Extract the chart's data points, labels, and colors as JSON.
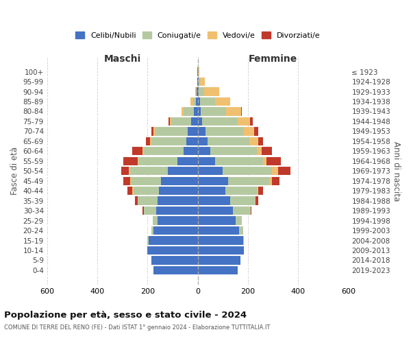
{
  "age_groups": [
    "0-4",
    "5-9",
    "10-14",
    "15-19",
    "20-24",
    "25-29",
    "30-34",
    "35-39",
    "40-44",
    "45-49",
    "50-54",
    "55-59",
    "60-64",
    "65-69",
    "70-74",
    "75-79",
    "80-84",
    "85-89",
    "90-94",
    "95-99",
    "100+"
  ],
  "birth_years": [
    "2019-2023",
    "2014-2018",
    "2009-2013",
    "2004-2008",
    "1999-2003",
    "1994-1998",
    "1989-1993",
    "1984-1988",
    "1979-1983",
    "1974-1978",
    "1969-1973",
    "1964-1968",
    "1959-1963",
    "1954-1958",
    "1949-1953",
    "1944-1948",
    "1939-1943",
    "1934-1938",
    "1929-1933",
    "1924-1928",
    "≤ 1923"
  ],
  "colors": {
    "celibi": "#4472c4",
    "coniugati": "#b5c9a1",
    "vedovi": "#f0c070",
    "divorziati": "#c0392b"
  },
  "maschi": {
    "celibi": [
      175,
      185,
      200,
      195,
      175,
      160,
      165,
      160,
      155,
      145,
      120,
      80,
      55,
      45,
      40,
      25,
      15,
      8,
      5,
      3,
      2
    ],
    "coniugati": [
      0,
      0,
      0,
      5,
      10,
      20,
      50,
      80,
      100,
      120,
      150,
      155,
      160,
      140,
      130,
      80,
      40,
      10,
      0,
      0,
      0
    ],
    "vedovi": [
      0,
      0,
      0,
      0,
      0,
      0,
      0,
      0,
      5,
      5,
      5,
      5,
      5,
      5,
      5,
      5,
      10,
      10,
      5,
      0,
      0
    ],
    "divorziati": [
      0,
      0,
      0,
      0,
      0,
      0,
      5,
      10,
      20,
      25,
      30,
      55,
      40,
      15,
      10,
      5,
      0,
      0,
      0,
      0,
      0
    ]
  },
  "femmine": {
    "celibi": [
      160,
      170,
      185,
      180,
      165,
      150,
      140,
      130,
      110,
      120,
      100,
      70,
      50,
      40,
      30,
      18,
      12,
      8,
      5,
      3,
      2
    ],
    "coniugati": [
      0,
      0,
      0,
      5,
      15,
      25,
      70,
      100,
      125,
      165,
      195,
      190,
      185,
      165,
      155,
      140,
      100,
      60,
      20,
      5,
      0
    ],
    "vedovi": [
      0,
      0,
      0,
      0,
      0,
      0,
      0,
      0,
      5,
      10,
      25,
      15,
      20,
      35,
      40,
      50,
      60,
      60,
      60,
      20,
      5
    ],
    "divorziati": [
      0,
      0,
      0,
      0,
      0,
      0,
      5,
      10,
      20,
      30,
      50,
      55,
      40,
      20,
      15,
      10,
      5,
      0,
      0,
      0,
      0
    ]
  },
  "title": "Popolazione per età, sesso e stato civile - 2024",
  "subtitle": "COMUNE DI TERRE DEL RENO (FE) - Dati ISTAT 1° gennaio 2024 - Elaborazione TUTTITALIA.IT",
  "xlabel_left": "Maschi",
  "xlabel_right": "Femmine",
  "ylabel_left": "Fasce di età",
  "ylabel_right": "Anni di nascita",
  "xlim": 600,
  "legend_labels": [
    "Celibi/Nubili",
    "Coniugati/e",
    "Vedovi/e",
    "Divorziati/e"
  ],
  "bg_color": "#ffffff",
  "grid_color": "#cccccc",
  "bar_height": 0.85
}
